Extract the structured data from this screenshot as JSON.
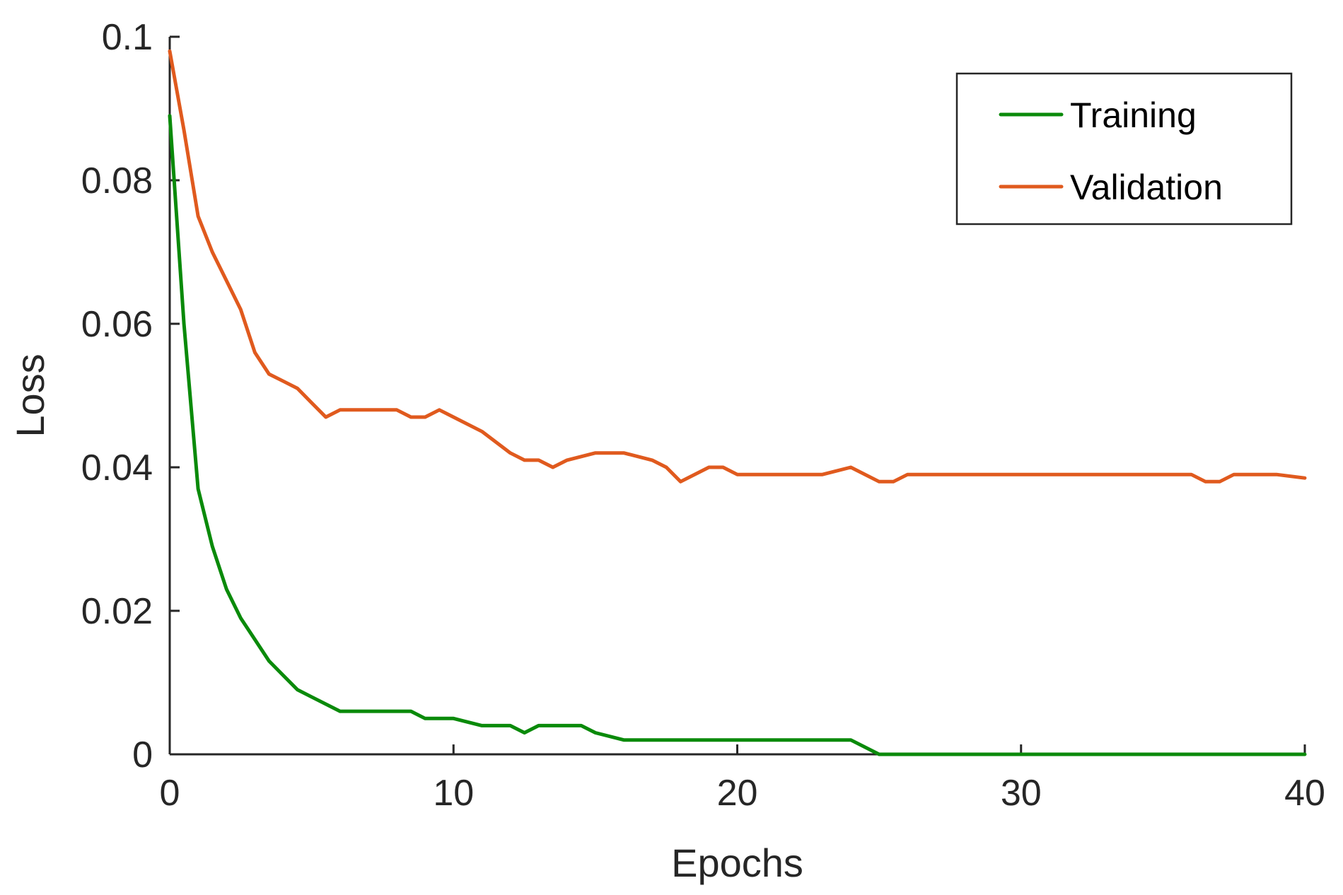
{
  "chart_data": {
    "type": "line",
    "title": "",
    "xlabel": "Epochs",
    "ylabel": "Loss",
    "xlim": [
      0,
      40
    ],
    "ylim": [
      0,
      0.1
    ],
    "xticks": [
      0,
      10,
      20,
      30,
      40
    ],
    "xtick_labels": [
      "0",
      "10",
      "20",
      "30",
      "40"
    ],
    "yticks": [
      0,
      0.02,
      0.04,
      0.06,
      0.08,
      0.1
    ],
    "ytick_labels": [
      "0",
      "0.02",
      "0.04",
      "0.06",
      "0.08",
      "0.1"
    ],
    "grid": false,
    "legend_position": "top-right",
    "series": [
      {
        "name": "Training",
        "color": "#0a8a0a",
        "x": [
          0,
          0.5,
          1,
          1.5,
          2,
          2.5,
          3,
          3.5,
          4,
          4.5,
          5,
          6,
          7,
          8,
          8.5,
          9,
          10,
          11,
          12,
          12.5,
          13,
          14,
          14.5,
          15,
          16,
          17,
          18,
          19,
          20,
          21,
          22,
          23,
          24,
          25,
          26,
          27,
          28,
          29,
          30,
          31,
          32,
          33,
          34,
          35,
          36,
          37,
          38,
          39,
          40
        ],
        "y": [
          0.089,
          0.06,
          0.037,
          0.029,
          0.023,
          0.019,
          0.016,
          0.013,
          0.011,
          0.009,
          0.008,
          0.006,
          0.006,
          0.006,
          0.006,
          0.005,
          0.005,
          0.004,
          0.004,
          0.003,
          0.004,
          0.004,
          0.004,
          0.003,
          0.002,
          0.002,
          0.002,
          0.002,
          0.002,
          0.002,
          0.002,
          0.002,
          0.002,
          0.0,
          0.0,
          0.0,
          0.0,
          0.0,
          0.0,
          0.0,
          0.0,
          0.0,
          0.0,
          0.0,
          0.0,
          0.0,
          0.0,
          0.0,
          0.0
        ]
      },
      {
        "name": "Validation",
        "color": "#e05a1e",
        "x": [
          0,
          0.5,
          1,
          1.5,
          2,
          2.5,
          3,
          3.5,
          4,
          4.5,
          5,
          5.5,
          6,
          7,
          8,
          8.5,
          9,
          9.5,
          10,
          11,
          12,
          12.5,
          13,
          13.5,
          14,
          15,
          16,
          17,
          17.5,
          18,
          19,
          19.5,
          20,
          21,
          22,
          23,
          24,
          25,
          25.5,
          26,
          27,
          28,
          29,
          30,
          31,
          32,
          33,
          34,
          35,
          36,
          36.5,
          37,
          37.5,
          38,
          39,
          40
        ],
        "y": [
          0.098,
          0.087,
          0.075,
          0.07,
          0.066,
          0.062,
          0.056,
          0.053,
          0.052,
          0.051,
          0.049,
          0.047,
          0.048,
          0.048,
          0.048,
          0.047,
          0.047,
          0.048,
          0.047,
          0.045,
          0.042,
          0.041,
          0.041,
          0.04,
          0.041,
          0.042,
          0.042,
          0.041,
          0.04,
          0.038,
          0.04,
          0.04,
          0.039,
          0.039,
          0.039,
          0.039,
          0.04,
          0.038,
          0.038,
          0.039,
          0.039,
          0.039,
          0.039,
          0.039,
          0.039,
          0.039,
          0.039,
          0.039,
          0.039,
          0.039,
          0.038,
          0.038,
          0.039,
          0.039,
          0.039,
          0.0385
        ]
      }
    ]
  }
}
